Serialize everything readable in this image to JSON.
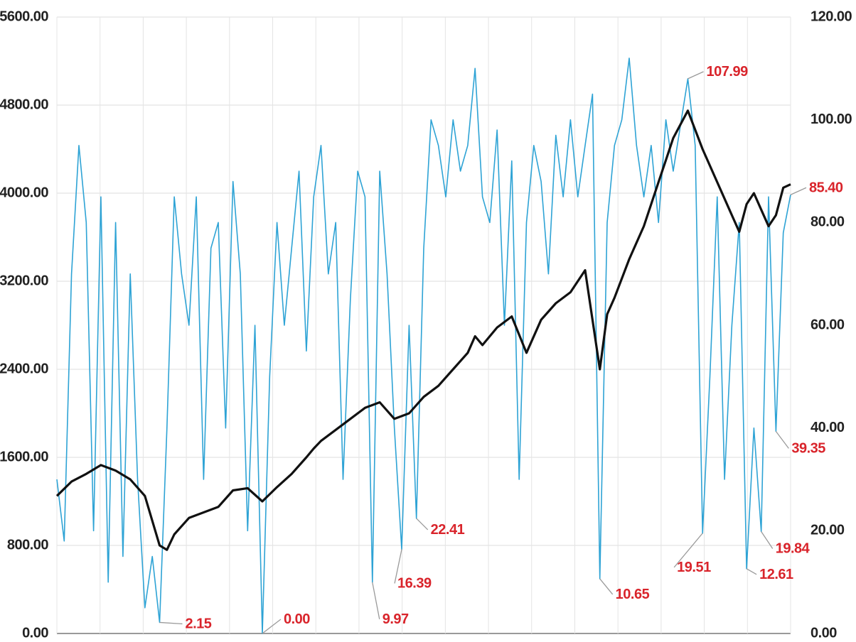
{
  "chart_data": {
    "type": "line",
    "title": "",
    "xlabel": "",
    "left_axis": {
      "ticks": [
        "0.00",
        "800.00",
        "1600.00",
        "2400.00",
        "3200.00",
        "4000.00",
        "4800.00",
        "5600.00"
      ],
      "ylim": [
        0,
        5600
      ]
    },
    "right_axis": {
      "ticks": [
        "0.00",
        "20.00",
        "40.00",
        "60.00",
        "80.00",
        "100.00",
        "120.00"
      ],
      "ylim": [
        0,
        120
      ]
    },
    "grid": true,
    "x_range": [
      0,
      100
    ],
    "series": [
      {
        "axis": "left",
        "color": "#111111",
        "x": [
          0,
          2,
          4,
          6,
          8,
          10,
          12,
          14,
          15,
          16,
          18,
          20,
          22,
          24,
          26,
          28,
          30,
          32,
          34,
          35,
          36,
          38,
          40,
          42,
          44,
          46,
          48,
          50,
          52,
          54,
          56,
          57,
          58,
          60,
          62,
          64,
          66,
          68,
          70,
          72,
          74,
          75,
          76,
          78,
          80,
          81,
          82,
          83,
          84,
          86,
          88,
          90,
          92,
          93,
          94,
          95,
          96,
          97,
          98,
          99,
          100
        ],
        "values": [
          1250,
          1380,
          1450,
          1530,
          1480,
          1400,
          1250,
          800,
          760,
          900,
          1050,
          1100,
          1150,
          1300,
          1320,
          1200,
          1330,
          1450,
          1600,
          1680,
          1750,
          1850,
          1950,
          2050,
          2100,
          1950,
          2000,
          2150,
          2250,
          2400,
          2550,
          2700,
          2620,
          2780,
          2880,
          2550,
          2850,
          3000,
          3100,
          3300,
          2400,
          2900,
          3050,
          3400,
          3700,
          3900,
          4100,
          4300,
          4500,
          4750,
          4400,
          4100,
          3800,
          3650,
          3900,
          4000,
          3850,
          3700,
          3800,
          4050,
          4080
        ]
      },
      {
        "axis": "right",
        "color": "#2ea3d5",
        "x": [
          0,
          1,
          2,
          3,
          4,
          5,
          6,
          7,
          8,
          9,
          10,
          11,
          12,
          13,
          14,
          15,
          16,
          17,
          18,
          19,
          20,
          21,
          22,
          23,
          24,
          25,
          26,
          27,
          28,
          29,
          30,
          31,
          32,
          33,
          34,
          35,
          36,
          37,
          38,
          39,
          40,
          41,
          42,
          43,
          44,
          45,
          46,
          47,
          48,
          49,
          50,
          51,
          52,
          53,
          54,
          55,
          56,
          57,
          58,
          59,
          60,
          61,
          62,
          63,
          64,
          65,
          66,
          67,
          68,
          69,
          70,
          71,
          72,
          73,
          74,
          75,
          76,
          77,
          78,
          79,
          80,
          81,
          82,
          83,
          84,
          85,
          86,
          87,
          88,
          89,
          90,
          91,
          92,
          93,
          94,
          95,
          96,
          97,
          98,
          99,
          100
        ],
        "values": [
          30,
          18,
          70,
          95,
          80,
          20,
          85,
          10,
          80,
          15,
          70,
          30,
          5,
          15,
          2.15,
          40,
          85,
          70,
          60,
          85,
          30,
          75,
          80,
          40,
          88,
          70,
          20,
          60,
          0,
          50,
          80,
          60,
          75,
          90,
          55,
          85,
          95,
          70,
          80,
          30,
          65,
          90,
          85,
          9.97,
          90,
          70,
          40,
          16.39,
          60,
          22.41,
          75,
          100,
          95,
          85,
          100,
          90,
          95,
          110,
          85,
          80,
          98,
          60,
          92,
          30,
          80,
          95,
          88,
          70,
          97,
          85,
          100,
          85,
          95,
          105,
          10.65,
          80,
          95,
          100,
          112,
          95,
          85,
          95,
          80,
          100,
          90,
          99,
          107.99,
          95,
          19.51,
          50,
          85,
          30,
          60,
          80,
          12.61,
          40,
          19.84,
          85,
          39.35,
          78,
          85.4
        ]
      }
    ],
    "annotations": [
      {
        "label": "2.15",
        "series": 1,
        "x": 14,
        "y": 2.15
      },
      {
        "label": "0.00",
        "series": 1,
        "x": 28,
        "y": 0
      },
      {
        "label": "9.97",
        "series": 1,
        "x": 43,
        "y": 9.97
      },
      {
        "label": "16.39",
        "series": 1,
        "x": 47,
        "y": 16.39
      },
      {
        "label": "22.41",
        "series": 1,
        "x": 49,
        "y": 22.41
      },
      {
        "label": "10.65",
        "series": 1,
        "x": 74,
        "y": 10.65
      },
      {
        "label": "19.51",
        "series": 1,
        "x": 88,
        "y": 19.51
      },
      {
        "label": "12.61",
        "series": 1,
        "x": 94,
        "y": 12.61
      },
      {
        "label": "19.84",
        "series": 1,
        "x": 96,
        "y": 19.84
      },
      {
        "label": "39.35",
        "series": 1,
        "x": 98,
        "y": 39.35
      },
      {
        "label": "85.40",
        "series": 1,
        "x": 100,
        "y": 85.4
      },
      {
        "label": "107.99",
        "series": 1,
        "x": 86,
        "y": 107.99
      }
    ]
  }
}
